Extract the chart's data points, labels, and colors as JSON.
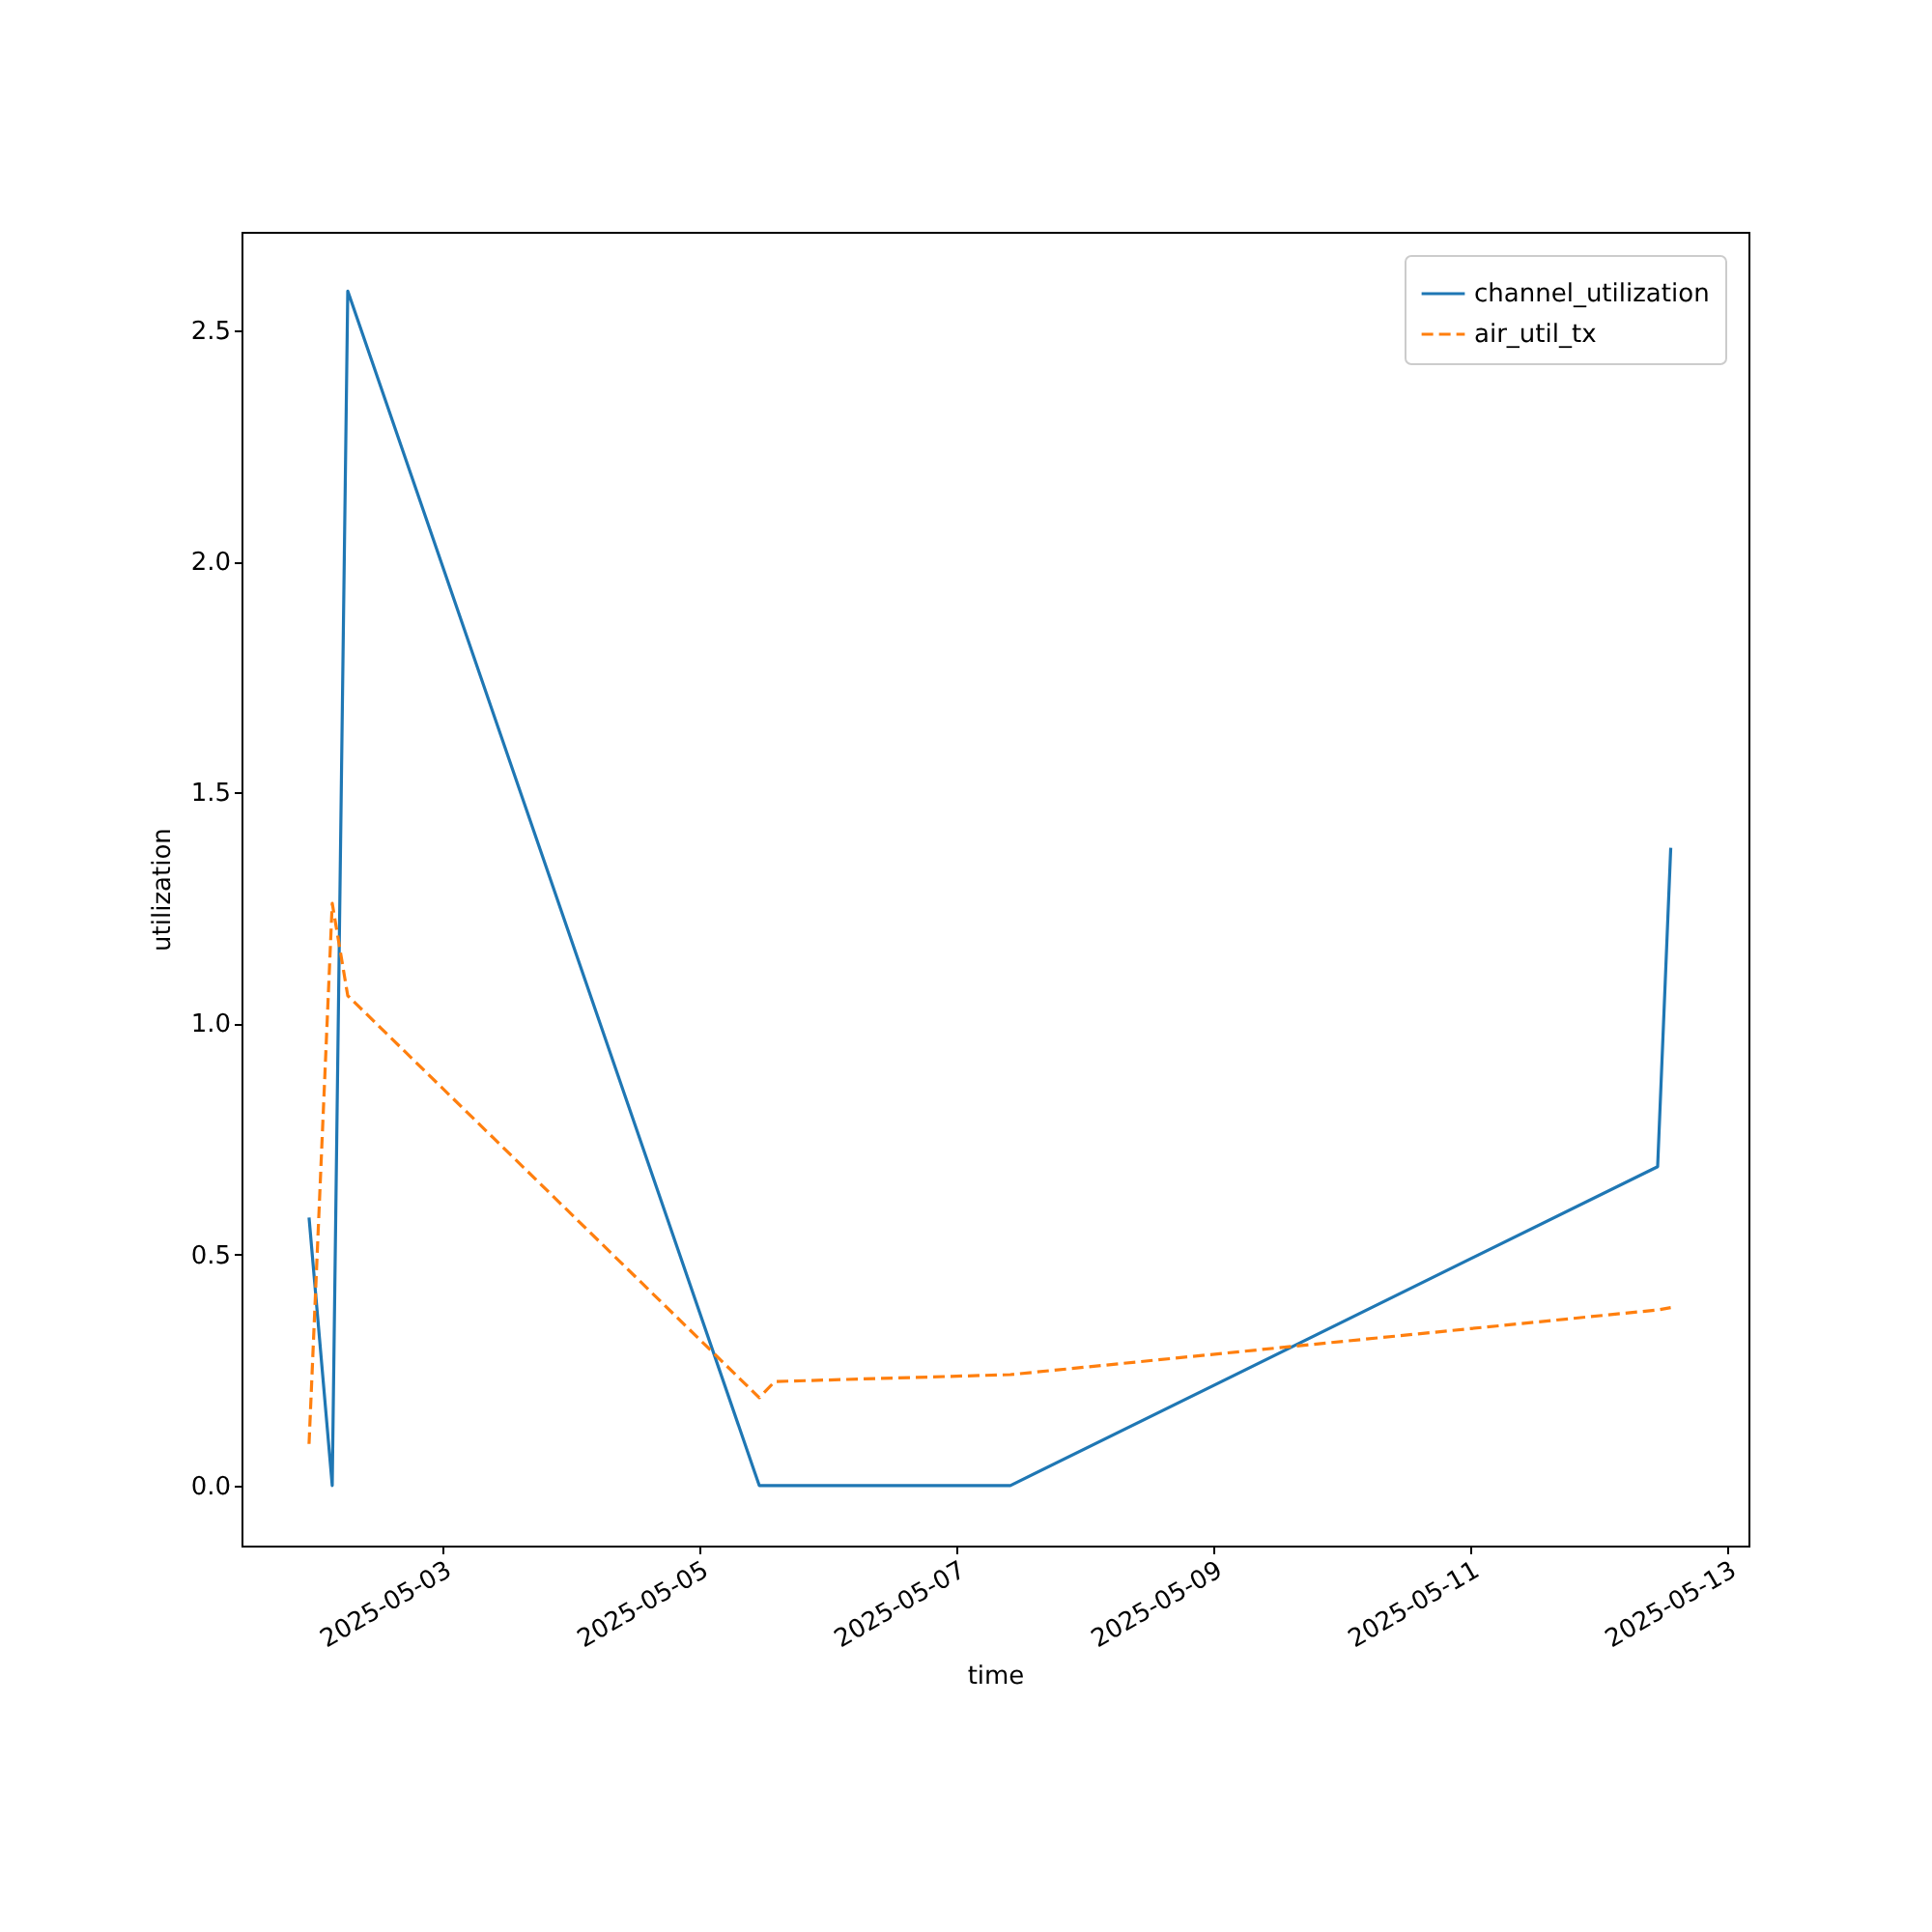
{
  "chart_data": {
    "type": "line",
    "xlabel": "time",
    "ylabel": "utilization",
    "x": [
      "2025-05-01T23:05",
      "2025-05-02T03:25",
      "2025-05-02T06:19",
      "2025-05-05T11:11",
      "2025-05-05T14:04",
      "2025-05-07T10:05",
      "2025-05-12T11:00",
      "2025-05-12T13:27"
    ],
    "series": [
      {
        "name": "channel_utilization",
        "color": "#1f77b4",
        "line_style": "solid",
        "values": [
          0.58,
          0,
          2.585,
          0,
          0,
          0,
          0.69,
          1.38
        ]
      },
      {
        "name": "air_util_tx",
        "color": "#ff7f0e",
        "line_style": "dashed",
        "values": [
          0.09,
          1.26,
          1.06,
          0.19,
          0.225,
          0.24,
          0.38,
          0.385
        ]
      }
    ],
    "xlim": [
      "2025-05-01T10:28",
      "2025-05-13T03:58"
    ],
    "xticks": [
      {
        "value": "2025-05-03",
        "label": "2025-05-03"
      },
      {
        "value": "2025-05-05",
        "label": "2025-05-05"
      },
      {
        "value": "2025-05-07",
        "label": "2025-05-07"
      },
      {
        "value": "2025-05-09",
        "label": "2025-05-09"
      },
      {
        "value": "2025-05-11",
        "label": "2025-05-11"
      },
      {
        "value": "2025-05-13",
        "label": "2025-05-13"
      }
    ],
    "ylim": [
      -0.13,
      2.713
    ],
    "yticks": [
      {
        "value": 0,
        "label": "0.0"
      },
      {
        "value": 0.5,
        "label": "0.5"
      },
      {
        "value": 1,
        "label": "1.0"
      },
      {
        "value": 1.5,
        "label": "1.5"
      },
      {
        "value": 2,
        "label": "2.0"
      },
      {
        "value": 2.5,
        "label": "2.5"
      }
    ],
    "grid": false,
    "legend": "top right",
    "marker": "none"
  }
}
